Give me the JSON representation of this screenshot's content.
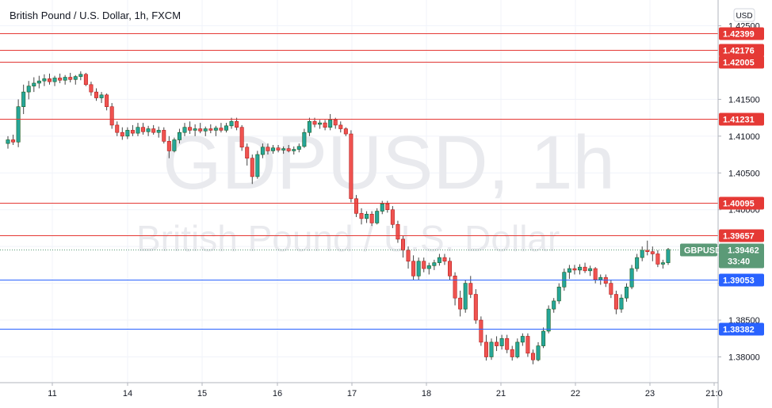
{
  "header": {
    "title": "British Pound / U.S. Dollar, 1h, FXCM",
    "currency_button": "USD"
  },
  "watermark": {
    "symbol": "GDPUSD, 1h",
    "name": "British Pound / U.S. Dollar"
  },
  "chart_data": {
    "type": "candlestick",
    "title": "British Pound / U.S. Dollar, 1h, FXCM",
    "ylim": [
      1.3765,
      1.4285
    ],
    "y_ticks": [
      "1.38000",
      "1.38500",
      "1.39000",
      "1.39500",
      "1.40000",
      "1.40500",
      "1.41000",
      "1.41500",
      "1.42000",
      "1.42500"
    ],
    "x_ticks": [
      "11",
      "14",
      "15",
      "16",
      "17",
      "18",
      "21",
      "22",
      "23",
      "21:0"
    ],
    "grid": true,
    "levels": [
      {
        "value": 1.42399,
        "label": "1.42399",
        "color": "#e53935"
      },
      {
        "value": 1.42176,
        "label": "1.42176",
        "color": "#e53935"
      },
      {
        "value": 1.42005,
        "label": "1.42005",
        "color": "#e53935"
      },
      {
        "value": 1.41231,
        "label": "1.41231",
        "color": "#e53935"
      },
      {
        "value": 1.40095,
        "label": "1.40095",
        "color": "#e53935"
      },
      {
        "value": 1.39657,
        "label": "1.39657",
        "color": "#e53935"
      },
      {
        "value": 1.39053,
        "label": "1.39053",
        "color": "#2962ff"
      },
      {
        "value": 1.38382,
        "label": "1.38382",
        "color": "#2962ff"
      }
    ],
    "last_price": {
      "symbol": "GBPUSD",
      "value": "1.39462",
      "countdown": "33:40",
      "color": "#5b9a77"
    },
    "candles": [
      [
        1.409,
        1.41,
        1.4083,
        1.4095
      ],
      [
        1.4095,
        1.4102,
        1.4088,
        1.4092
      ],
      [
        1.4092,
        1.415,
        1.4085,
        1.414
      ],
      [
        1.414,
        1.417,
        1.413,
        1.416
      ],
      [
        1.416,
        1.4175,
        1.415,
        1.4168
      ],
      [
        1.4168,
        1.418,
        1.416,
        1.4172
      ],
      [
        1.4172,
        1.4182,
        1.4165,
        1.4175
      ],
      [
        1.4175,
        1.4184,
        1.4168,
        1.4178
      ],
      [
        1.4178,
        1.4185,
        1.417,
        1.4174
      ],
      [
        1.4174,
        1.4182,
        1.4168,
        1.4179
      ],
      [
        1.4179,
        1.4185,
        1.4172,
        1.4176
      ],
      [
        1.4176,
        1.4183,
        1.417,
        1.418
      ],
      [
        1.418,
        1.4186,
        1.4173,
        1.4177
      ],
      [
        1.4177,
        1.4183,
        1.417,
        1.4181
      ],
      [
        1.4181,
        1.4188,
        1.4176,
        1.4184
      ],
      [
        1.4184,
        1.4186,
        1.4168,
        1.417
      ],
      [
        1.417,
        1.4174,
        1.4155,
        1.416
      ],
      [
        1.416,
        1.4165,
        1.4148,
        1.4152
      ],
      [
        1.4152,
        1.416,
        1.4145,
        1.4156
      ],
      [
        1.4156,
        1.4158,
        1.4135,
        1.414
      ],
      [
        1.414,
        1.4145,
        1.411,
        1.4115
      ],
      [
        1.4115,
        1.412,
        1.41,
        1.4105
      ],
      [
        1.4105,
        1.4112,
        1.4095,
        1.41
      ],
      [
        1.41,
        1.4112,
        1.4096,
        1.4108
      ],
      [
        1.4108,
        1.4115,
        1.41,
        1.4104
      ],
      [
        1.4104,
        1.4118,
        1.41,
        1.4112
      ],
      [
        1.4112,
        1.4118,
        1.4102,
        1.4106
      ],
      [
        1.4106,
        1.4114,
        1.41,
        1.411
      ],
      [
        1.411,
        1.4115,
        1.4102,
        1.4105
      ],
      [
        1.4105,
        1.4113,
        1.4098,
        1.4108
      ],
      [
        1.4108,
        1.4112,
        1.409,
        1.4093
      ],
      [
        1.4093,
        1.41,
        1.407,
        1.408
      ],
      [
        1.408,
        1.4098,
        1.4078,
        1.4095
      ],
      [
        1.4095,
        1.411,
        1.409,
        1.4105
      ],
      [
        1.4105,
        1.4118,
        1.41,
        1.4112
      ],
      [
        1.4112,
        1.412,
        1.4103,
        1.4108
      ],
      [
        1.4108,
        1.4116,
        1.41,
        1.411
      ],
      [
        1.411,
        1.4118,
        1.4104,
        1.4107
      ],
      [
        1.4107,
        1.4113,
        1.41,
        1.411
      ],
      [
        1.411,
        1.4116,
        1.4104,
        1.4108
      ],
      [
        1.4108,
        1.4114,
        1.41,
        1.4111
      ],
      [
        1.4111,
        1.4118,
        1.4105,
        1.4108
      ],
      [
        1.4108,
        1.4118,
        1.4105,
        1.4114
      ],
      [
        1.4114,
        1.4125,
        1.411,
        1.412
      ],
      [
        1.412,
        1.4125,
        1.4108,
        1.4112
      ],
      [
        1.4112,
        1.4115,
        1.408,
        1.4085
      ],
      [
        1.4085,
        1.409,
        1.406,
        1.407
      ],
      [
        1.407,
        1.4075,
        1.4035,
        1.4045
      ],
      [
        1.4045,
        1.408,
        1.4042,
        1.4075
      ],
      [
        1.4075,
        1.409,
        1.407,
        1.4085
      ],
      [
        1.4085,
        1.409,
        1.4075,
        1.408
      ],
      [
        1.408,
        1.4088,
        1.4076,
        1.4084
      ],
      [
        1.4084,
        1.4088,
        1.4078,
        1.4081
      ],
      [
        1.4081,
        1.4086,
        1.4076,
        1.4083
      ],
      [
        1.4083,
        1.4088,
        1.4078,
        1.408
      ],
      [
        1.408,
        1.4086,
        1.4075,
        1.4082
      ],
      [
        1.4082,
        1.409,
        1.4078,
        1.4086
      ],
      [
        1.4086,
        1.411,
        1.4084,
        1.4105
      ],
      [
        1.4105,
        1.4125,
        1.41,
        1.412
      ],
      [
        1.412,
        1.4125,
        1.4112,
        1.4116
      ],
      [
        1.4116,
        1.4122,
        1.411,
        1.4118
      ],
      [
        1.4118,
        1.4122,
        1.4108,
        1.4112
      ],
      [
        1.4112,
        1.413,
        1.4108,
        1.4122
      ],
      [
        1.4122,
        1.4125,
        1.411,
        1.4115
      ],
      [
        1.4115,
        1.412,
        1.4105,
        1.411
      ],
      [
        1.411,
        1.4112,
        1.41,
        1.4103
      ],
      [
        1.4103,
        1.4108,
        1.401,
        1.4015
      ],
      [
        1.4015,
        1.402,
        1.399,
        1.3995
      ],
      [
        1.3995,
        1.4002,
        1.398,
        1.3988
      ],
      [
        1.3988,
        1.3998,
        1.3982,
        1.3994
      ],
      [
        1.3994,
        1.3998,
        1.3978,
        1.3982
      ],
      [
        1.3982,
        1.4002,
        1.398,
        1.3998
      ],
      [
        1.3998,
        1.4012,
        1.3994,
        1.4008
      ],
      [
        1.4008,
        1.4012,
        1.3996,
        1.4
      ],
      [
        1.4,
        1.4005,
        1.3975,
        1.398
      ],
      [
        1.398,
        1.3985,
        1.3955,
        1.396
      ],
      [
        1.396,
        1.3965,
        1.3935,
        1.3945
      ],
      [
        1.3945,
        1.395,
        1.392,
        1.393
      ],
      [
        1.393,
        1.3938,
        1.3905,
        1.391
      ],
      [
        1.391,
        1.3935,
        1.3905,
        1.393
      ],
      [
        1.393,
        1.3935,
        1.3915,
        1.392
      ],
      [
        1.392,
        1.3928,
        1.3912,
        1.3924
      ],
      [
        1.3924,
        1.3932,
        1.3918,
        1.3928
      ],
      [
        1.3928,
        1.394,
        1.3924,
        1.3935
      ],
      [
        1.3935,
        1.394,
        1.3925,
        1.393
      ],
      [
        1.393,
        1.3935,
        1.3905,
        1.391
      ],
      [
        1.391,
        1.3915,
        1.387,
        1.388
      ],
      [
        1.388,
        1.389,
        1.3855,
        1.3865
      ],
      [
        1.3865,
        1.3905,
        1.386,
        1.39
      ],
      [
        1.39,
        1.391,
        1.388,
        1.3885
      ],
      [
        1.3885,
        1.3892,
        1.3845,
        1.385
      ],
      [
        1.385,
        1.3855,
        1.3815,
        1.382
      ],
      [
        1.382,
        1.383,
        1.3795,
        1.38
      ],
      [
        1.38,
        1.3825,
        1.3796,
        1.382
      ],
      [
        1.382,
        1.3828,
        1.3808,
        1.3815
      ],
      [
        1.3815,
        1.383,
        1.381,
        1.3825
      ],
      [
        1.3825,
        1.383,
        1.3805,
        1.381
      ],
      [
        1.381,
        1.3815,
        1.3795,
        1.38
      ],
      [
        1.38,
        1.3825,
        1.3798,
        1.382
      ],
      [
        1.382,
        1.3832,
        1.3815,
        1.3828
      ],
      [
        1.3828,
        1.3832,
        1.38,
        1.3805
      ],
      [
        1.3805,
        1.381,
        1.379,
        1.3796
      ],
      [
        1.3796,
        1.382,
        1.3794,
        1.3815
      ],
      [
        1.3815,
        1.384,
        1.3812,
        1.3835
      ],
      [
        1.3835,
        1.387,
        1.3832,
        1.3865
      ],
      [
        1.3865,
        1.388,
        1.386,
        1.3876
      ],
      [
        1.3876,
        1.39,
        1.3872,
        1.3895
      ],
      [
        1.3895,
        1.392,
        1.389,
        1.3915
      ],
      [
        1.3915,
        1.3925,
        1.3906,
        1.392
      ],
      [
        1.392,
        1.3925,
        1.3912,
        1.3918
      ],
      [
        1.3918,
        1.3926,
        1.3912,
        1.3922
      ],
      [
        1.3922,
        1.3928,
        1.3914,
        1.3917
      ],
      [
        1.3917,
        1.3924,
        1.391,
        1.392
      ],
      [
        1.392,
        1.3922,
        1.39,
        1.3905
      ],
      [
        1.3905,
        1.3912,
        1.3898,
        1.3908
      ],
      [
        1.3908,
        1.3912,
        1.3895,
        1.39
      ],
      [
        1.39,
        1.3905,
        1.388,
        1.3885
      ],
      [
        1.3885,
        1.389,
        1.3858,
        1.3865
      ],
      [
        1.3865,
        1.3885,
        1.386,
        1.388
      ],
      [
        1.388,
        1.39,
        1.3875,
        1.3895
      ],
      [
        1.3895,
        1.3925,
        1.3892,
        1.392
      ],
      [
        1.392,
        1.394,
        1.3916,
        1.3935
      ],
      [
        1.3935,
        1.395,
        1.393,
        1.3945
      ],
      [
        1.3945,
        1.3958,
        1.3938,
        1.3943
      ],
      [
        1.3943,
        1.395,
        1.393,
        1.394
      ],
      [
        1.394,
        1.3945,
        1.3922,
        1.3926
      ],
      [
        1.3926,
        1.3932,
        1.392,
        1.3928
      ],
      [
        1.3928,
        1.3948,
        1.3925,
        1.3946
      ]
    ]
  }
}
